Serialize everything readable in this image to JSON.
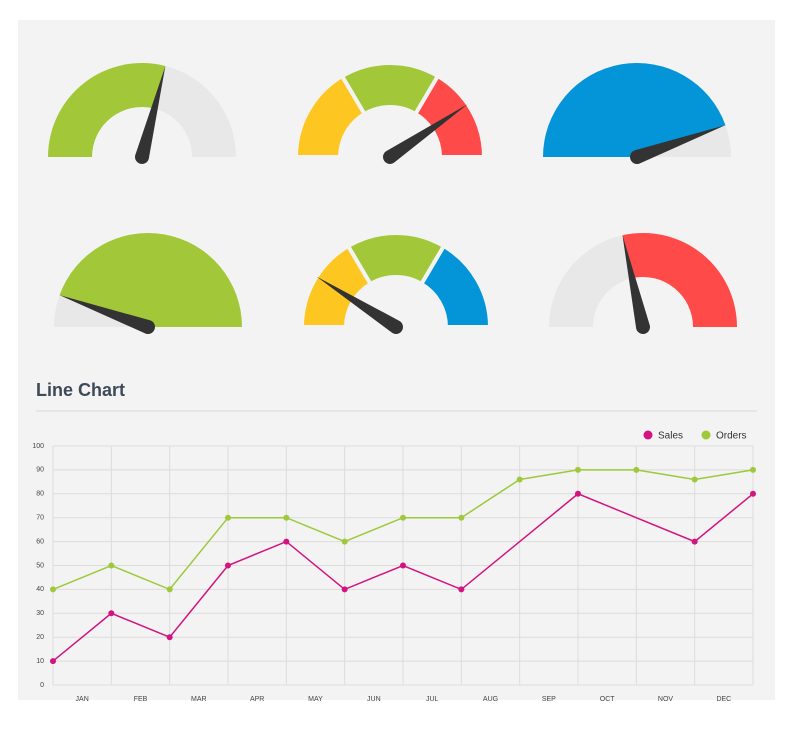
{
  "gauges": [
    {
      "value": 58,
      "fill": "below",
      "hollow": true,
      "color": "#a2c83a",
      "track": "#e8e8e8"
    },
    {
      "value": 81,
      "hollow": true,
      "segments": [
        {
          "to": 33,
          "color": "#fec620"
        },
        {
          "to": 67,
          "color": "#a2c83a"
        },
        {
          "to": 100,
          "color": "#fe4a49"
        }
      ]
    },
    {
      "value": 89,
      "fill": "below",
      "hollow": false,
      "color": "#0494d8",
      "track": "#e8e8e8"
    },
    {
      "value": 11,
      "fill": "above",
      "hollow": false,
      "color": "#a2c83a",
      "track": "#e8e8e8"
    },
    {
      "value": 18,
      "hollow": true,
      "segments": [
        {
          "to": 33,
          "color": "#fec620"
        },
        {
          "to": 67,
          "color": "#a2c83a"
        },
        {
          "to": 100,
          "color": "#0494d8"
        }
      ]
    },
    {
      "value": 43,
      "fill": "above",
      "hollow": true,
      "color": "#fe4a49",
      "track": "#e8e8e8"
    }
  ],
  "chart_data": {
    "type": "line",
    "title": "Line Chart",
    "categories": [
      "JAN",
      "FEB",
      "MAR",
      "APR",
      "MAY",
      "JUN",
      "JUL",
      "AUG",
      "SEP",
      "OCT",
      "NOV",
      "DEC"
    ],
    "xlim": [
      0,
      12
    ],
    "ylim": [
      0,
      100
    ],
    "yticks": [
      0,
      10,
      20,
      30,
      40,
      50,
      60,
      70,
      80,
      90,
      100
    ],
    "grid": true,
    "legend": "top-right",
    "series": [
      {
        "name": "Sales",
        "color": "#d3137f",
        "x": [
          0,
          1,
          2,
          3,
          4,
          5,
          6,
          7,
          9,
          11,
          12
        ],
        "values": [
          10,
          30,
          20,
          50,
          60,
          40,
          50,
          40,
          80,
          60,
          80
        ]
      },
      {
        "name": "Orders",
        "color": "#9dc93a",
        "x": [
          0,
          1,
          2,
          3,
          4,
          5,
          6,
          7,
          8,
          9,
          10,
          11,
          12
        ],
        "values": [
          40,
          50,
          40,
          70,
          70,
          60,
          70,
          70,
          86,
          90,
          90,
          86,
          90
        ]
      }
    ]
  }
}
